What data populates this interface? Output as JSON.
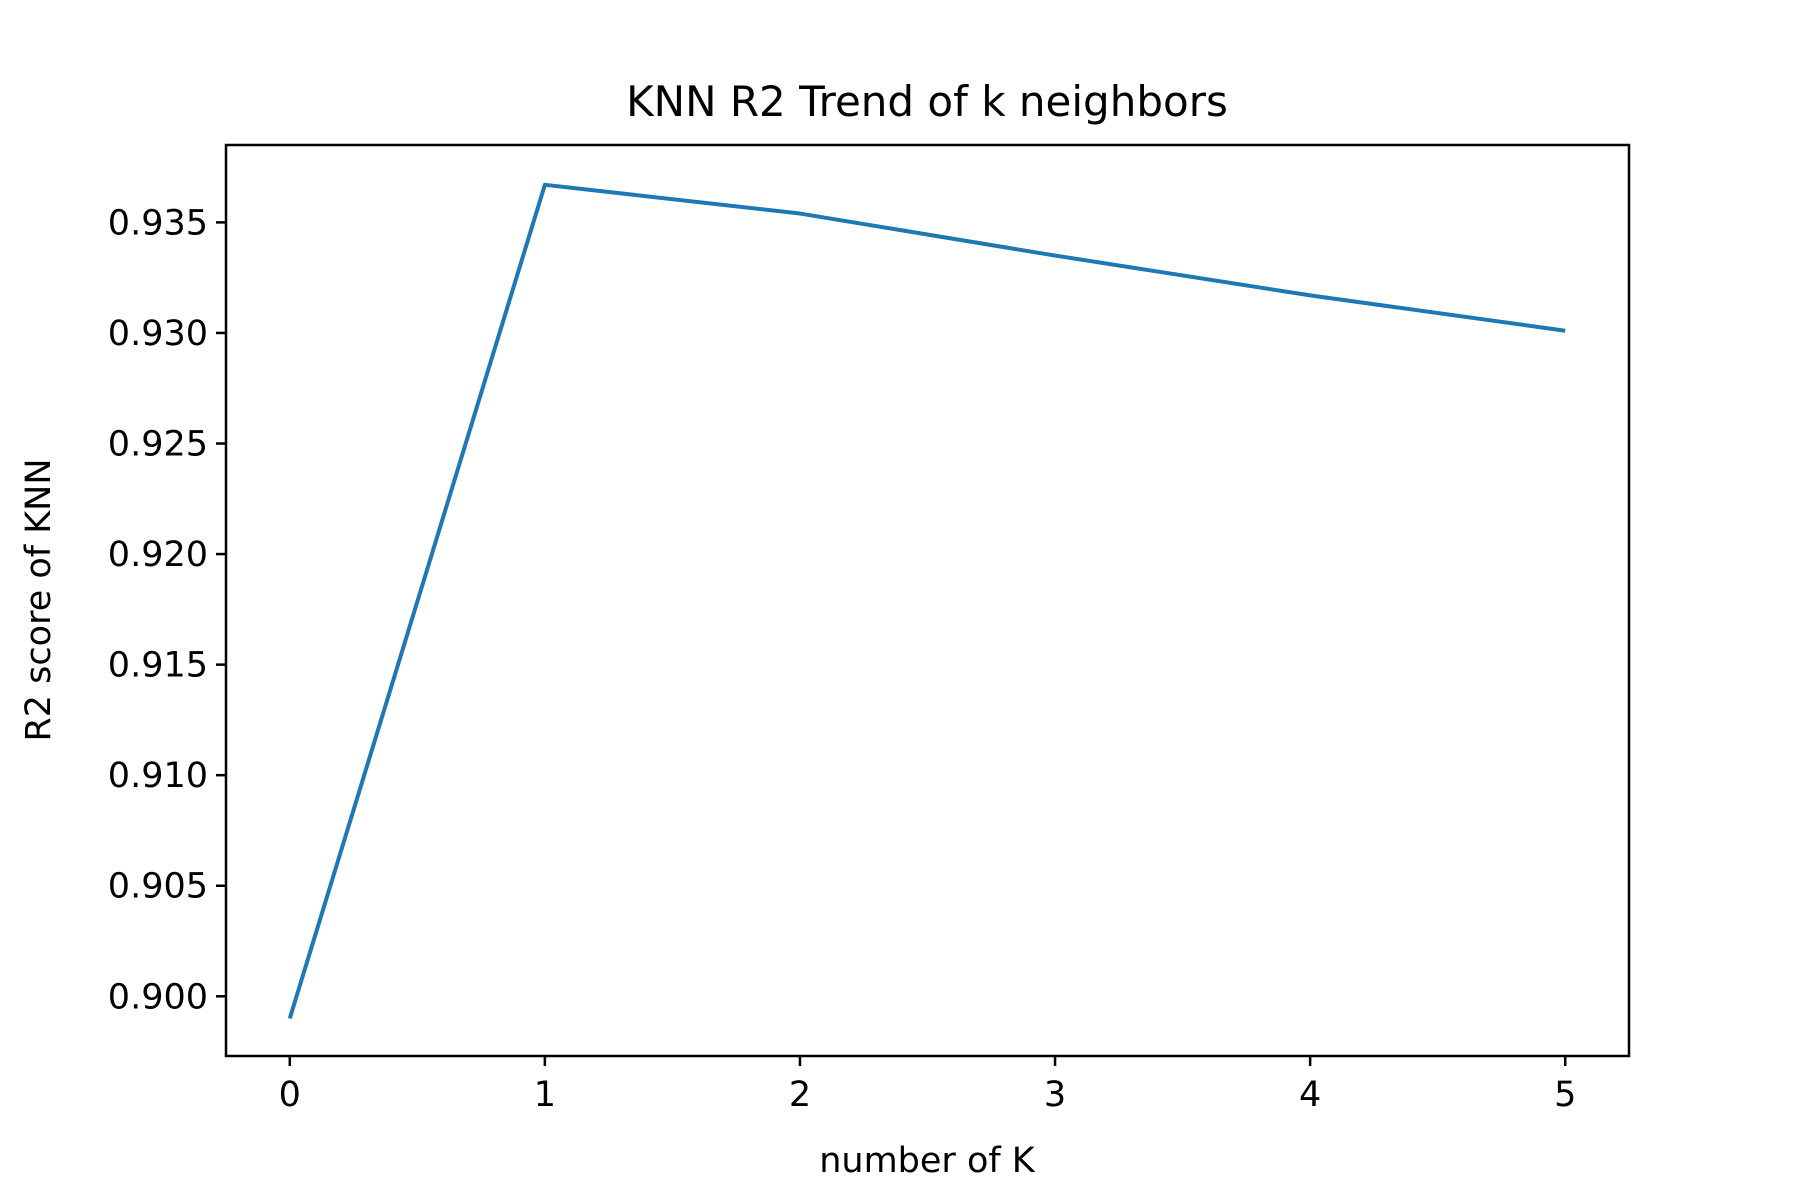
{
  "chart_data": {
    "type": "line",
    "title": "KNN R2 Trend of k neighbors",
    "xlabel": "number of K",
    "ylabel": "R2 score of KNN",
    "x": [
      0,
      1,
      2,
      3,
      4,
      5
    ],
    "series": [
      {
        "values": [
          0.899,
          0.9367,
          0.9354,
          0.9335,
          0.9317,
          0.9301
        ],
        "color": "#1f77b4"
      }
    ],
    "xlim": [
      -0.25,
      5.25
    ],
    "ylim": [
      0.8973,
      0.9385
    ],
    "xticks": [
      0,
      1,
      2,
      3,
      4,
      5
    ],
    "yticks": [
      0.9,
      0.905,
      0.91,
      0.915,
      0.92,
      0.925,
      0.93,
      0.935
    ],
    "xtick_labels": [
      "0",
      "1",
      "2",
      "3",
      "4",
      "5"
    ],
    "ytick_labels": [
      "0.900",
      "0.905",
      "0.910",
      "0.915",
      "0.920",
      "0.925",
      "0.930",
      "0.935"
    ],
    "grid": false,
    "legend": "none"
  }
}
